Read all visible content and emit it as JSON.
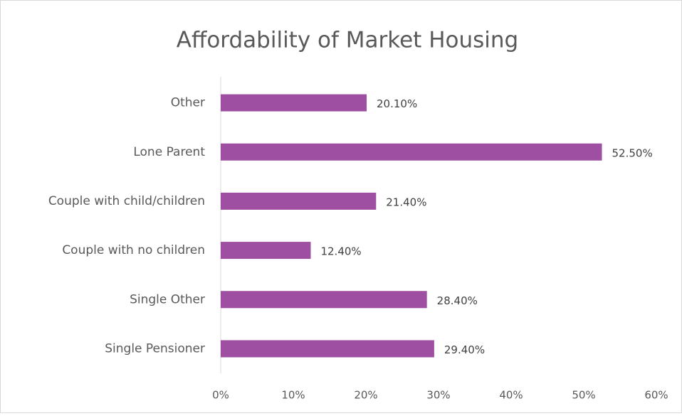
{
  "chart_data": {
    "type": "bar",
    "orientation": "horizontal",
    "title": "Affordability of Market Housing",
    "categories": [
      "Other",
      "Lone Parent",
      "Couple with child/children",
      "Couple with no children",
      "Single Other",
      "Single Pensioner"
    ],
    "values": [
      20.1,
      52.5,
      21.4,
      12.4,
      28.4,
      29.4
    ],
    "value_labels": [
      "20.10%",
      "52.50%",
      "21.40%",
      "12.40%",
      "28.40%",
      "29.40%"
    ],
    "color": "#9e4fa2",
    "xlim": [
      0,
      60
    ],
    "xticks": [
      {
        "value": 0,
        "label": "0%"
      },
      {
        "value": 10,
        "label": "10%"
      },
      {
        "value": 20,
        "label": "20%"
      },
      {
        "value": 30,
        "label": "30%"
      },
      {
        "value": 40,
        "label": "40%"
      },
      {
        "value": 50,
        "label": "50%"
      },
      {
        "value": 60,
        "label": "60%"
      }
    ],
    "grid": false
  }
}
